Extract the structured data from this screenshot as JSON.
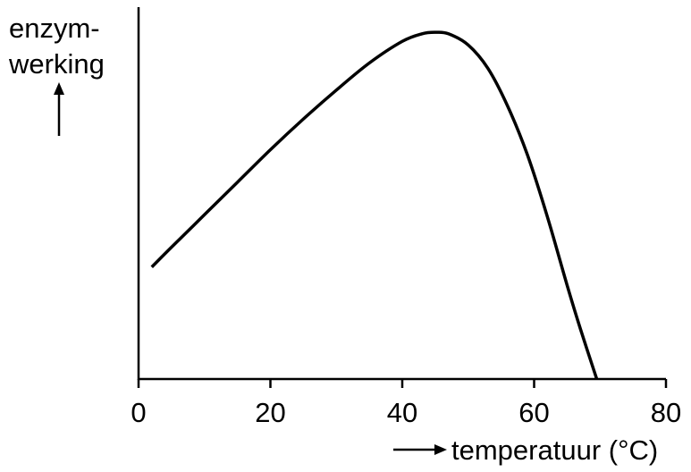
{
  "chart_data": {
    "type": "line",
    "title": "",
    "ylabel_line1": "enzym-",
    "ylabel_line2": "werking",
    "xlabel": "temperatuur (°C)",
    "xlim": [
      0,
      80
    ],
    "x_ticks": [
      "0",
      "20",
      "40",
      "60",
      "80"
    ],
    "x_tick_values": [
      0,
      20,
      40,
      60,
      80
    ],
    "ylim": [
      0,
      100
    ],
    "y_ticks": [],
    "grid": false,
    "legend": "none",
    "line_color": "#000000",
    "series": [
      {
        "x": [
          2,
          5,
          10,
          15,
          20,
          25,
          30,
          35,
          40,
          43,
          45,
          47,
          50,
          53,
          56,
          59,
          62,
          65,
          67,
          69.5
        ],
        "y": [
          31,
          36.5,
          45.5,
          54.5,
          63.5,
          72,
          80,
          87.5,
          93.5,
          95.6,
          96,
          95.6,
          92.5,
          86,
          75.5,
          62,
          45,
          26,
          14,
          0
        ]
      }
    ]
  }
}
